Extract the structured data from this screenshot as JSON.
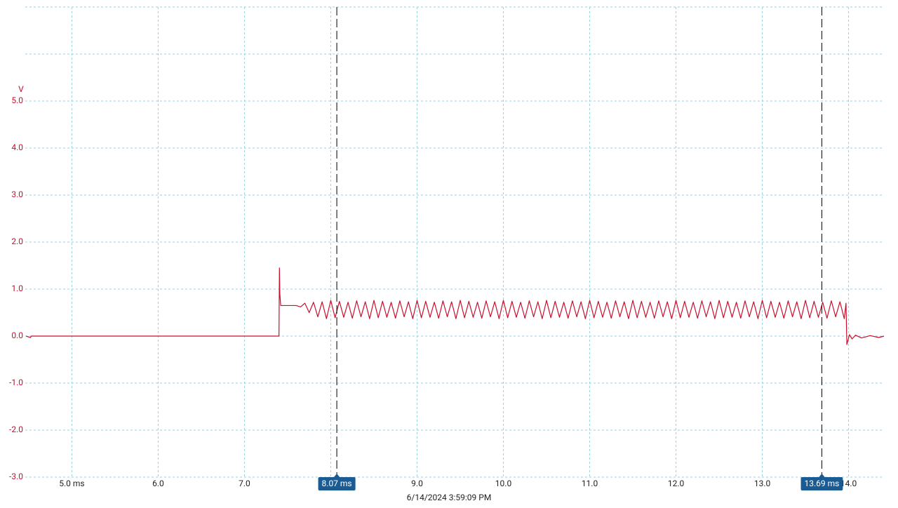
{
  "chart_data": {
    "type": "line",
    "y_unit": "V",
    "date": "6/14/2024 3:59:09 PM",
    "color": "#c8102e",
    "grid": true,
    "xlim": [
      4.46,
      14.41
    ],
    "ylim": [
      -3.0,
      7.0
    ],
    "xticks": [
      {
        "value": 5,
        "label": "5.0 ms"
      },
      {
        "value": 6,
        "label": "6.0"
      },
      {
        "value": 7,
        "label": "7.0"
      },
      {
        "value": 8,
        "label": "8.0"
      },
      {
        "value": 9,
        "label": "9.0"
      },
      {
        "value": 10,
        "label": "10.0"
      },
      {
        "value": 11,
        "label": "11.0"
      },
      {
        "value": 12,
        "label": "12.0"
      },
      {
        "value": 13,
        "label": "13.0"
      },
      {
        "value": 14,
        "label": "14.0"
      }
    ],
    "yticks": [
      {
        "value": -3,
        "label": "-3.0"
      },
      {
        "value": -2,
        "label": "-2.0"
      },
      {
        "value": -1,
        "label": "-1.0"
      },
      {
        "value": 0,
        "label": "0.0"
      },
      {
        "value": 1,
        "label": "1.0"
      },
      {
        "value": 2,
        "label": "2.0"
      },
      {
        "value": 3,
        "label": "3.0"
      },
      {
        "value": 4,
        "label": "4.0"
      },
      {
        "value": 5,
        "label": "5.0"
      },
      {
        "value": 6,
        "label": null
      },
      {
        "value": 7,
        "label": null
      }
    ],
    "cursors": [
      {
        "value": 8.07,
        "label": "8.07 ms"
      },
      {
        "value": 13.69,
        "label": "13.69 ms"
      }
    ],
    "x": [
      4.47,
      4.52,
      4.53,
      7.38,
      7.4,
      7.405,
      7.41,
      7.42,
      7.6,
      7.65,
      7.7,
      7.75,
      7.8,
      7.85,
      7.9,
      7.95,
      8,
      8.05,
      8.1,
      8.15,
      8.2,
      8.25,
      8.3,
      8.35,
      8.4,
      8.45,
      8.5,
      8.55,
      8.6,
      8.65,
      8.7,
      8.75,
      8.8,
      8.85,
      8.9,
      8.95,
      9,
      9.05,
      9.1,
      9.15,
      9.2,
      9.25,
      9.3,
      9.35,
      9.4,
      9.45,
      9.5,
      9.55,
      9.6,
      9.65,
      9.7,
      9.75,
      9.8,
      9.85,
      9.9,
      9.95,
      10,
      10.05,
      10.1,
      10.15,
      10.2,
      10.25,
      10.3,
      10.35,
      10.4,
      10.45,
      10.5,
      10.55,
      10.6,
      10.65,
      10.7,
      10.75,
      10.8,
      10.85,
      10.9,
      10.95,
      11,
      11.05,
      11.1,
      11.15,
      11.2,
      11.25,
      11.3,
      11.35,
      11.4,
      11.45,
      11.5,
      11.55,
      11.6,
      11.65,
      11.7,
      11.75,
      11.8,
      11.85,
      11.9,
      11.95,
      12,
      12.05,
      12.1,
      12.15,
      12.2,
      12.25,
      12.3,
      12.35,
      12.4,
      12.45,
      12.5,
      12.55,
      12.6,
      12.65,
      12.7,
      12.75,
      12.8,
      12.85,
      12.9,
      12.95,
      13,
      13.05,
      13.1,
      13.15,
      13.2,
      13.25,
      13.3,
      13.35,
      13.4,
      13.45,
      13.5,
      13.55,
      13.6,
      13.65,
      13.7,
      13.75,
      13.8,
      13.85,
      13.9,
      13.95,
      13.97,
      13.98,
      14.01,
      14.04,
      14.08,
      14.15,
      14.25,
      14.35,
      14.41
    ],
    "values": [
      0,
      -0.03,
      0,
      0,
      0,
      1.45,
      0.9,
      0.65,
      0.65,
      0.62,
      0.7,
      0.5,
      0.72,
      0.41,
      0.73,
      0.37,
      0.76,
      0.39,
      0.74,
      0.4,
      0.72,
      0.38,
      0.75,
      0.41,
      0.73,
      0.37,
      0.76,
      0.39,
      0.74,
      0.4,
      0.72,
      0.38,
      0.75,
      0.41,
      0.73,
      0.37,
      0.76,
      0.39,
      0.74,
      0.4,
      0.72,
      0.38,
      0.75,
      0.41,
      0.73,
      0.37,
      0.76,
      0.39,
      0.74,
      0.4,
      0.72,
      0.38,
      0.75,
      0.41,
      0.73,
      0.37,
      0.76,
      0.39,
      0.74,
      0.4,
      0.72,
      0.38,
      0.75,
      0.41,
      0.73,
      0.37,
      0.76,
      0.39,
      0.74,
      0.4,
      0.72,
      0.38,
      0.75,
      0.41,
      0.73,
      0.37,
      0.76,
      0.39,
      0.74,
      0.4,
      0.72,
      0.38,
      0.75,
      0.41,
      0.73,
      0.37,
      0.76,
      0.39,
      0.74,
      0.4,
      0.72,
      0.38,
      0.75,
      0.41,
      0.73,
      0.37,
      0.76,
      0.39,
      0.74,
      0.4,
      0.72,
      0.38,
      0.75,
      0.41,
      0.73,
      0.37,
      0.76,
      0.39,
      0.74,
      0.4,
      0.72,
      0.38,
      0.75,
      0.41,
      0.73,
      0.37,
      0.76,
      0.39,
      0.74,
      0.4,
      0.72,
      0.38,
      0.75,
      0.41,
      0.73,
      0.37,
      0.76,
      0.39,
      0.74,
      0.4,
      0.72,
      0.38,
      0.75,
      0.41,
      0.73,
      0.37,
      0.7,
      -0.18,
      0.03,
      -0.06,
      0.02,
      -0.04,
      0.01,
      -0.03,
      0
    ]
  }
}
